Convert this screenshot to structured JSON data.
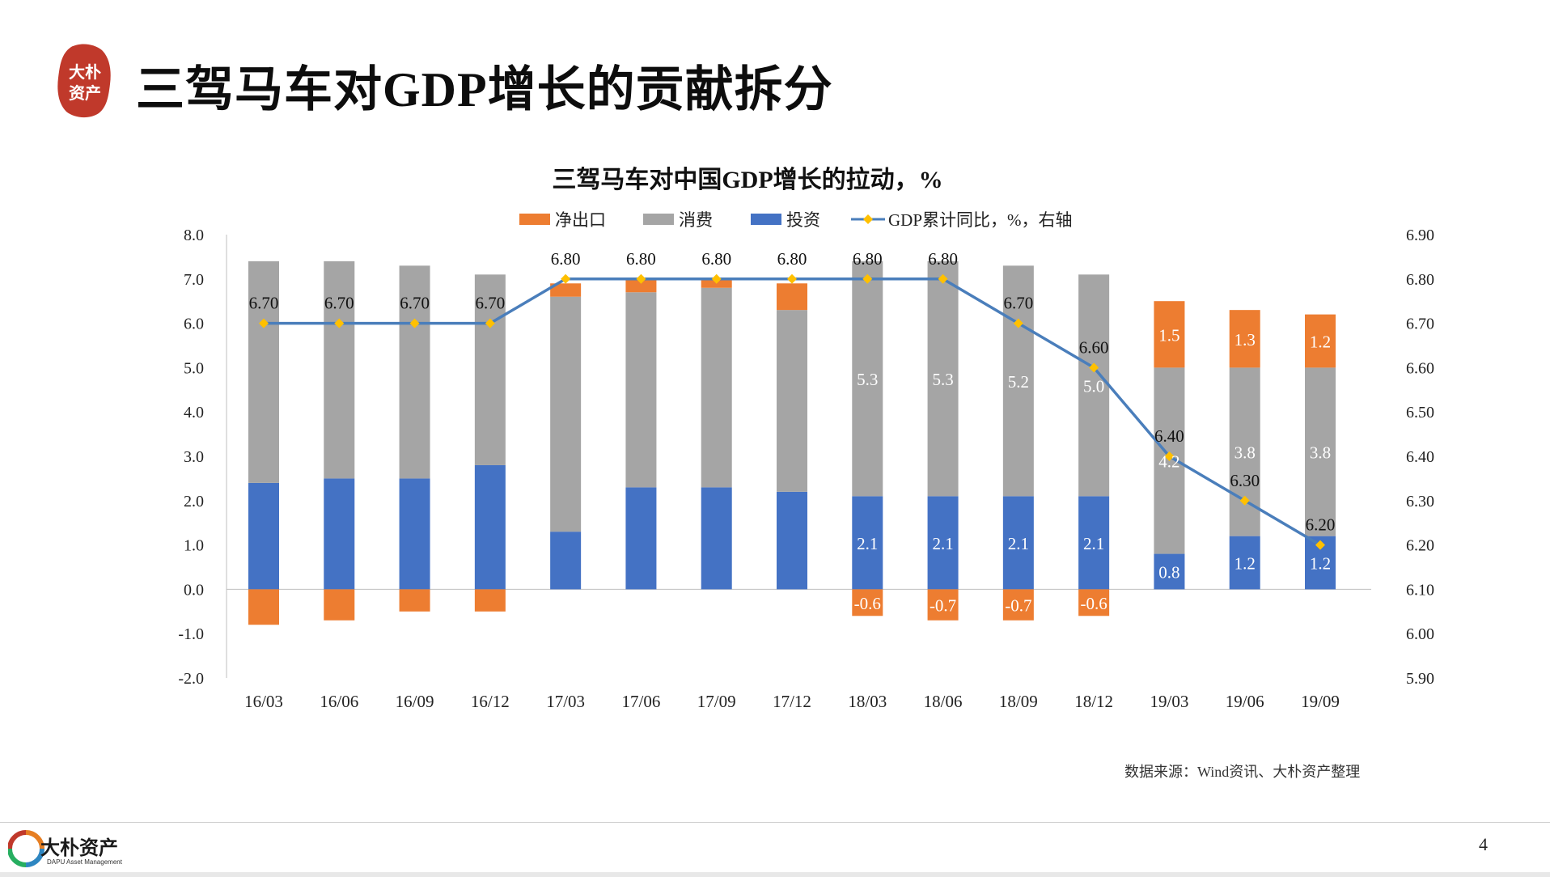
{
  "header": {
    "title": "三驾马车对GDP增长的贡献拆分",
    "seal_text": [
      "大朴",
      "资产"
    ]
  },
  "chart_data": {
    "type": "bar",
    "stacked": true,
    "title": "三驾马车对中国GDP增长的拉动，%",
    "categories": [
      "16/03",
      "16/06",
      "16/09",
      "16/12",
      "17/03",
      "17/06",
      "17/09",
      "17/12",
      "18/03",
      "18/06",
      "18/09",
      "18/12",
      "19/03",
      "19/06",
      "19/09"
    ],
    "legend_position": "top",
    "grid": false,
    "series": [
      {
        "name": "净出口",
        "type": "bar",
        "axis": "left",
        "color": "#ED7D31",
        "values": [
          -0.8,
          -0.7,
          -0.5,
          -0.5,
          0.3,
          0.3,
          0.2,
          0.6,
          -0.6,
          -0.7,
          -0.7,
          -0.6,
          1.5,
          1.3,
          1.2
        ],
        "labels": [
          null,
          null,
          null,
          null,
          null,
          null,
          null,
          null,
          "-0.6",
          "-0.7",
          "-0.7",
          "-0.6",
          "1.5",
          "1.3",
          "1.2"
        ]
      },
      {
        "name": "消费",
        "type": "bar",
        "axis": "left",
        "color": "#A5A5A5",
        "values": [
          5.0,
          4.9,
          4.8,
          4.3,
          5.3,
          4.4,
          4.5,
          4.1,
          5.3,
          5.3,
          5.2,
          5.0,
          4.2,
          3.8,
          3.8
        ],
        "labels": [
          null,
          null,
          null,
          null,
          null,
          null,
          null,
          null,
          "5.3",
          "5.3",
          "5.2",
          "5.0",
          "4.2",
          "3.8",
          "3.8"
        ]
      },
      {
        "name": "投资",
        "type": "bar",
        "axis": "left",
        "color": "#4472C4",
        "values": [
          2.4,
          2.5,
          2.5,
          2.8,
          1.3,
          2.3,
          2.3,
          2.2,
          2.1,
          2.1,
          2.1,
          2.1,
          0.8,
          1.2,
          1.2
        ],
        "labels": [
          null,
          null,
          null,
          null,
          null,
          null,
          null,
          null,
          "2.1",
          "2.1",
          "2.1",
          "2.1",
          "0.8",
          "1.2",
          "1.2"
        ]
      },
      {
        "name": "GDP累计同比，%，右轴",
        "type": "line",
        "axis": "right",
        "color": "#4A7EBB",
        "marker_color": "#FFC000",
        "values": [
          6.7,
          6.7,
          6.7,
          6.7,
          6.8,
          6.8,
          6.8,
          6.8,
          6.8,
          6.8,
          6.7,
          6.6,
          6.4,
          6.3,
          6.2
        ],
        "labels": [
          "6.70",
          "6.70",
          "6.70",
          "6.70",
          "6.80",
          "6.80",
          "6.80",
          "6.80",
          "6.80",
          "6.80",
          "6.70",
          "6.60",
          "6.40",
          "6.30",
          "6.20"
        ]
      }
    ],
    "y_left": {
      "range": [
        -2.0,
        8.0
      ],
      "ticks": [
        "8.0",
        "7.0",
        "6.0",
        "5.0",
        "4.0",
        "3.0",
        "2.0",
        "1.0",
        "0.0",
        "-1.0",
        "-2.0"
      ]
    },
    "y_right": {
      "range": [
        5.9,
        6.9
      ],
      "ticks": [
        "6.90",
        "6.80",
        "6.70",
        "6.60",
        "6.50",
        "6.40",
        "6.30",
        "6.20",
        "6.10",
        "6.00",
        "5.90"
      ]
    }
  },
  "source_note": "数据来源：Wind资讯、大朴资产整理",
  "footer": {
    "logo_name": "大朴资产",
    "logo_sub": "DAPU Asset Management",
    "page_number": "4"
  }
}
